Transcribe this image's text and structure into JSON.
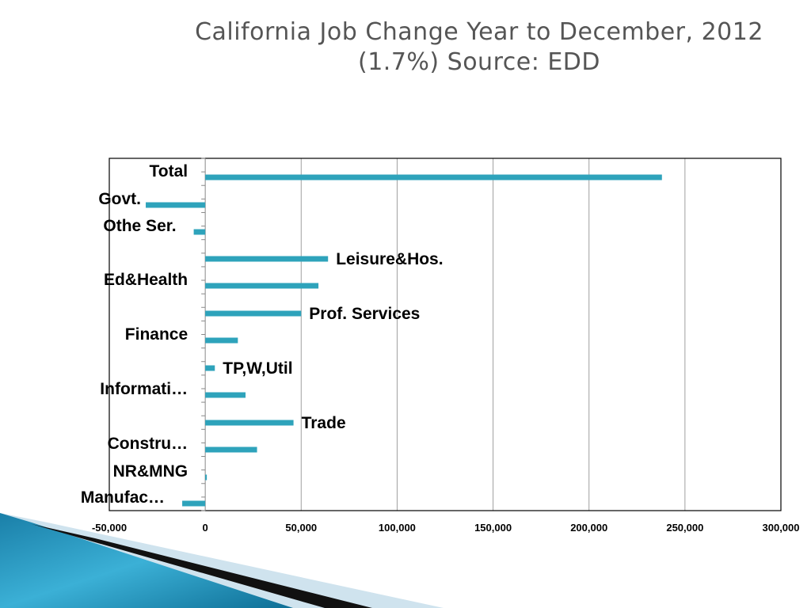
{
  "slide": {
    "title_line1": "California Job Change Year to December, 2012",
    "title_line2": "(1.7%)  Source: EDD"
  },
  "colors": {
    "bar": "#2ea3bb",
    "grid": "#a0a0a0",
    "frame": "#000000",
    "title": "#555555"
  },
  "chart_data": {
    "type": "bar",
    "orientation": "horizontal",
    "categories": [
      "Total",
      "Govt.",
      "Othe Ser.",
      "Leisure&Hos.",
      "Ed&Health",
      "Prof. Services",
      "Finance",
      "TP,W,Util",
      "Informati…",
      "Trade",
      "Constru…",
      "NR&MNG",
      "Manufac…"
    ],
    "values": [
      238000,
      -31000,
      -6000,
      64000,
      59000,
      50000,
      17000,
      5000,
      21000,
      46000,
      27000,
      500,
      -12000
    ],
    "xlim": [
      -50000,
      300000
    ],
    "xticks": [
      "-50,000",
      "0",
      "50,000",
      "100,000",
      "150,000",
      "200,000",
      "250,000",
      "300,000"
    ],
    "xtick_values": [
      -50000,
      0,
      50000,
      100000,
      150000,
      200000,
      250000,
      300000
    ],
    "grid": "vertical",
    "legend": "none"
  }
}
